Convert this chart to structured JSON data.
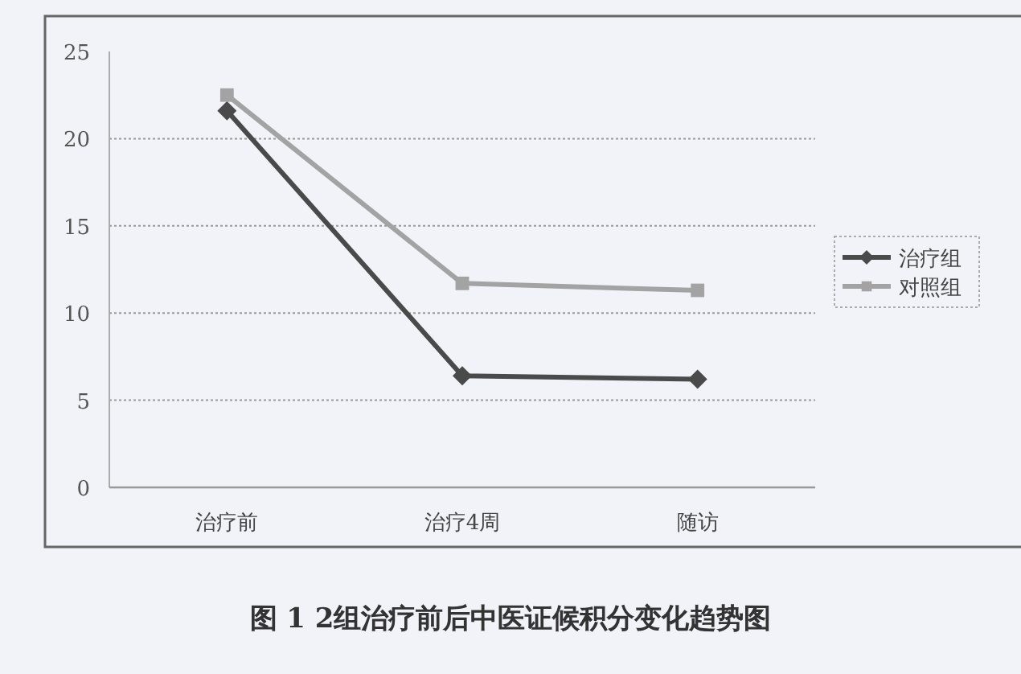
{
  "chart_data": {
    "type": "line",
    "title": "图 1 2组治疗前后中医证候积分变化趋势图",
    "categories": [
      "治疗前",
      "治疗4周",
      "随访"
    ],
    "series": [
      {
        "name": "治疗组",
        "color": "#4a4a4a",
        "marker": "diamond",
        "values": [
          21.6,
          6.4,
          6.2
        ]
      },
      {
        "name": "对照组",
        "color": "#a3a3a3",
        "marker": "square",
        "values": [
          22.5,
          11.7,
          11.3
        ]
      }
    ],
    "ylim": [
      0,
      25
    ],
    "yticks": [
      0,
      5,
      10,
      15,
      20,
      25
    ],
    "grid": "y",
    "legend": "right"
  }
}
